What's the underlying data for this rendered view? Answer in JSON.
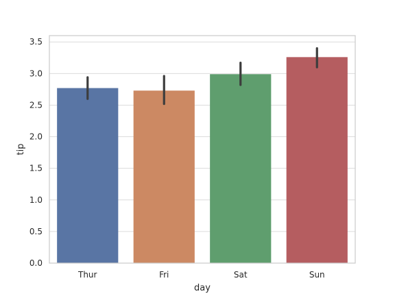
{
  "chart_data": {
    "type": "bar",
    "xlabel": "day",
    "ylabel": "tip",
    "categories": [
      "Thur",
      "Fri",
      "Sat",
      "Sun"
    ],
    "values": [
      2.77,
      2.73,
      2.99,
      3.26
    ],
    "error_low": [
      2.6,
      2.52,
      2.82,
      3.1
    ],
    "error_high": [
      2.94,
      2.96,
      3.17,
      3.4
    ],
    "colors": [
      "#5975a4",
      "#cc8963",
      "#5f9e6e",
      "#b55d60"
    ],
    "ylim": [
      0,
      3.6
    ],
    "yticks": [
      "0.0",
      "0.5",
      "1.0",
      "1.5",
      "2.0",
      "2.5",
      "3.0",
      "3.5"
    ],
    "grid": true
  }
}
